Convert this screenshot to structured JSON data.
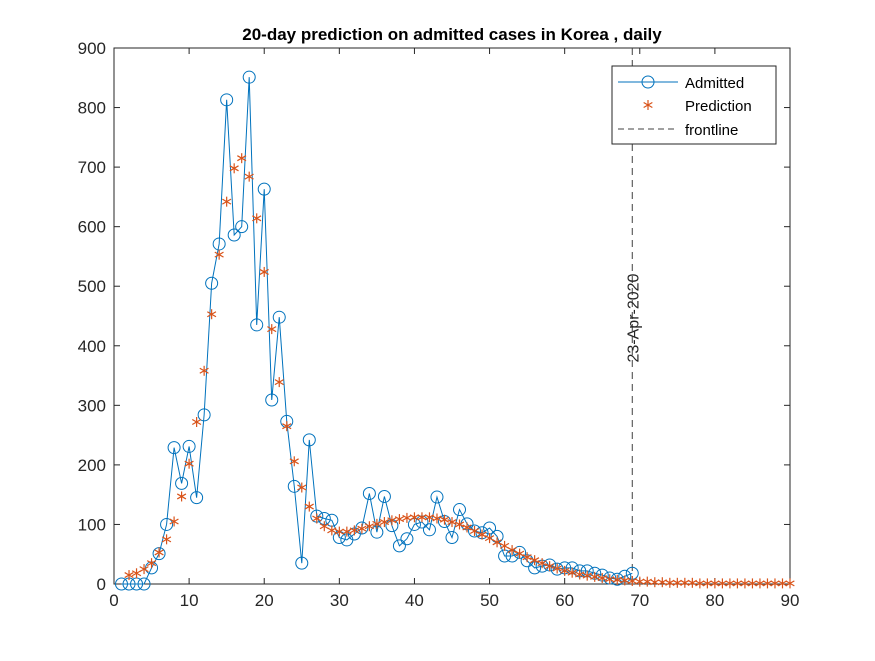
{
  "chart_data": {
    "type": "line",
    "title": "20-day prediction on admitted cases in Korea , daily",
    "xlabel": "",
    "ylabel": "",
    "xlim": [
      0,
      90
    ],
    "ylim": [
      0,
      900
    ],
    "xticks": [
      0,
      10,
      20,
      30,
      40,
      50,
      60,
      70,
      80,
      90
    ],
    "yticks": [
      0,
      100,
      200,
      300,
      400,
      500,
      600,
      700,
      800,
      900
    ],
    "grid": false,
    "legend_position": "top-right",
    "series": [
      {
        "name": "Admitted",
        "marker": "circle",
        "line": "solid",
        "color": "#0072BD",
        "x": [
          1,
          2,
          3,
          4,
          5,
          6,
          7,
          8,
          9,
          10,
          11,
          12,
          13,
          14,
          15,
          16,
          17,
          18,
          19,
          20,
          21,
          22,
          23,
          24,
          25,
          26,
          27,
          28,
          29,
          30,
          31,
          32,
          33,
          34,
          35,
          36,
          37,
          38,
          39,
          40,
          41,
          42,
          43,
          44,
          45,
          46,
          47,
          48,
          49,
          50,
          51,
          52,
          53,
          54,
          55,
          56,
          57,
          58,
          59,
          60,
          61,
          62,
          63,
          64,
          65,
          66,
          67,
          68,
          69
        ],
        "y": [
          0,
          0,
          0,
          0,
          27,
          51,
          100,
          229,
          169,
          231,
          145,
          284,
          505,
          571,
          813,
          586,
          600,
          851,
          435,
          663,
          309,
          448,
          273,
          164,
          35,
          242,
          114,
          110,
          107,
          78,
          74,
          84,
          94,
          152,
          87,
          147,
          98,
          64,
          76,
          100,
          104,
          91,
          146,
          105,
          78,
          125,
          101,
          89,
          86,
          94,
          80,
          47,
          47,
          53,
          39,
          27,
          30,
          32,
          25,
          27,
          27,
          22,
          22,
          18,
          15,
          10,
          8,
          13,
          18
        ]
      },
      {
        "name": "Prediction",
        "marker": "asterisk",
        "line": "none",
        "color": "#D95319",
        "x": [
          2,
          3,
          4,
          5,
          6,
          7,
          8,
          9,
          10,
          11,
          12,
          13,
          14,
          15,
          16,
          17,
          18,
          19,
          20,
          21,
          22,
          23,
          24,
          25,
          26,
          27,
          28,
          29,
          30,
          31,
          32,
          33,
          34,
          35,
          36,
          37,
          38,
          39,
          40,
          41,
          42,
          43,
          44,
          45,
          46,
          47,
          48,
          49,
          50,
          51,
          52,
          53,
          54,
          55,
          56,
          57,
          58,
          59,
          60,
          61,
          62,
          63,
          64,
          65,
          66,
          67,
          68,
          69,
          70,
          71,
          72,
          73,
          74,
          75,
          76,
          77,
          78,
          79,
          80,
          81,
          82,
          83,
          84,
          85,
          86,
          87,
          88,
          89,
          90
        ],
        "y": [
          15,
          18,
          25,
          35,
          53,
          75,
          105,
          147,
          202,
          272,
          358,
          453,
          553,
          642,
          698,
          715,
          684,
          614,
          524,
          428,
          339,
          265,
          206,
          162,
          130,
          110,
          97,
          90,
          88,
          88,
          90,
          93,
          97,
          101,
          104,
          107,
          109,
          111,
          112,
          112,
          112,
          110,
          108,
          104,
          100,
          95,
          89,
          83,
          77,
          70,
          64,
          57,
          51,
          45,
          40,
          35,
          30,
          26,
          22,
          19,
          16,
          14,
          12,
          10,
          8,
          7,
          6,
          5,
          4,
          4,
          3,
          3,
          2,
          2,
          2,
          2,
          1,
          1,
          1,
          1,
          1,
          1,
          1,
          1,
          1,
          1,
          1,
          1,
          1
        ]
      },
      {
        "name": "frontline",
        "line": "dashed",
        "color": "#404040",
        "x": 69
      }
    ],
    "annotations": [
      {
        "text": "23-Apr-2020",
        "x": 69,
        "rotation": "vertical"
      }
    ]
  }
}
